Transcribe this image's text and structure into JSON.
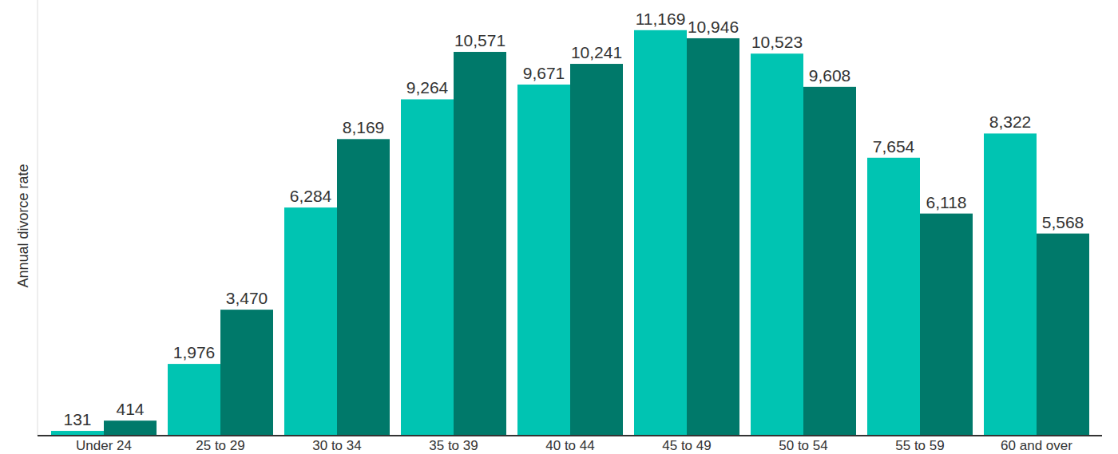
{
  "chart_data": {
    "type": "bar",
    "y_label": "Annual divorce rate",
    "categories": [
      "Under 24",
      "25 to 29",
      "30 to 34",
      "35 to 39",
      "40 to 44",
      "45 to 49",
      "50 to 54",
      "55 to 59",
      "60 and over"
    ],
    "series": [
      {
        "color": "#00c4b2",
        "values": [
          131,
          1976,
          6284,
          9264,
          9671,
          11169,
          10523,
          7654,
          8322
        ],
        "value_labels": [
          "131",
          "1,976",
          "6,284",
          "9,264",
          "9,671",
          "11,169",
          "10,523",
          "7,654",
          "8,322"
        ]
      },
      {
        "color": "#00796a",
        "values": [
          414,
          3470,
          8169,
          10571,
          10241,
          10946,
          9608,
          6118,
          5568
        ],
        "value_labels": [
          "414",
          "3,470",
          "8,169",
          "10,571",
          "10,241",
          "10,946",
          "9,608",
          "6,118",
          "5,568"
        ]
      }
    ],
    "ylim": [
      0,
      12000
    ],
    "grid": false,
    "data_labels": true,
    "tick_labels": "x"
  }
}
